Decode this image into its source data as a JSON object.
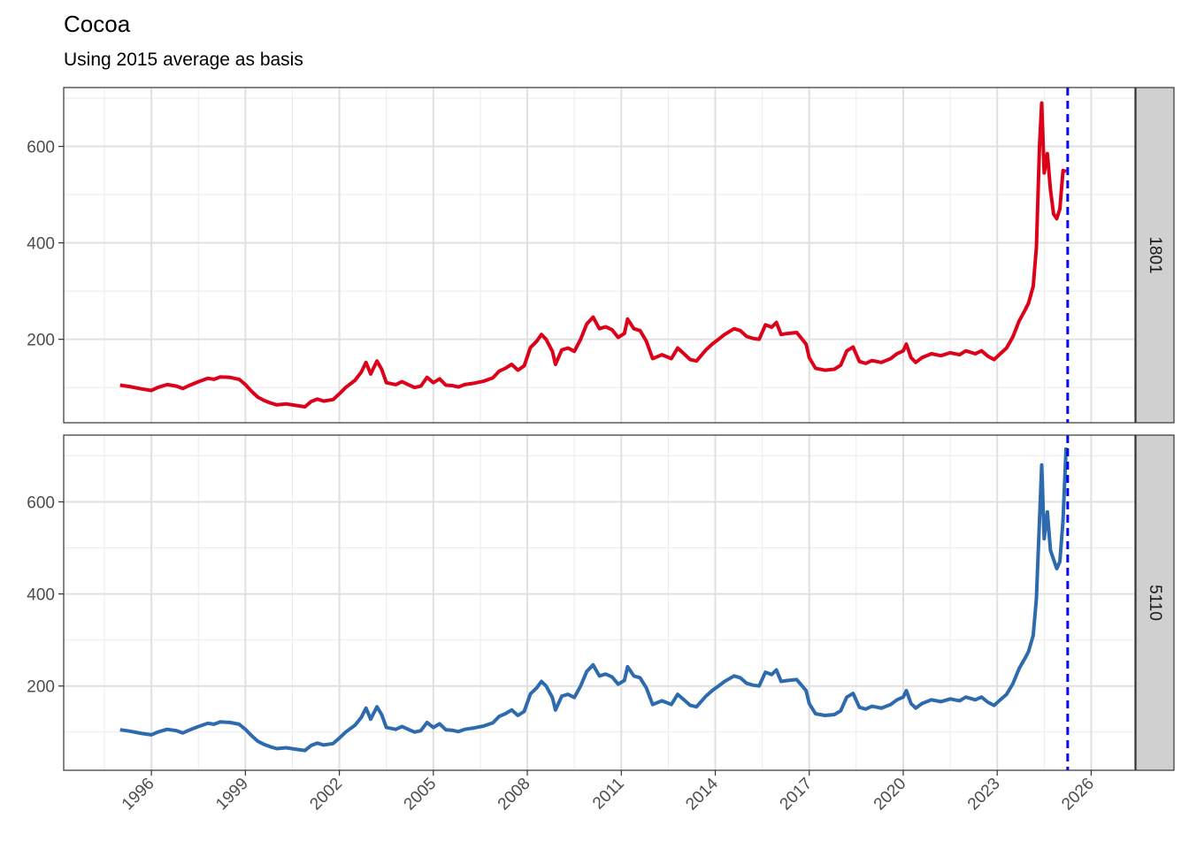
{
  "chart_data": {
    "type": "line",
    "title": "Cocoa",
    "subtitle": "Using 2015 average as basis",
    "xlabel": "",
    "ylabel": "",
    "x_ticks": [
      "1996",
      "1999",
      "2002",
      "2005",
      "2008",
      "2011",
      "2014",
      "2017",
      "2020",
      "2023",
      "2026"
    ],
    "y_ticks": [
      200,
      400,
      600
    ],
    "xlim": [
      1993.2,
      2027.4
    ],
    "vline": {
      "x": 2025.25,
      "color": "#0000ff",
      "style": "dashed"
    },
    "grid": true,
    "facets": [
      {
        "strip": "1801",
        "color": "#dd0019",
        "ylim": [
          27,
          722
        ],
        "points": [
          [
            1995.0,
            105
          ],
          [
            1995.3,
            102
          ],
          [
            1995.7,
            97
          ],
          [
            1996.0,
            94
          ],
          [
            1996.2,
            100
          ],
          [
            1996.5,
            106
          ],
          [
            1996.8,
            103
          ],
          [
            1997.0,
            98
          ],
          [
            1997.2,
            104
          ],
          [
            1997.5,
            112
          ],
          [
            1997.8,
            119
          ],
          [
            1998.0,
            117
          ],
          [
            1998.2,
            122
          ],
          [
            1998.5,
            121
          ],
          [
            1998.8,
            117
          ],
          [
            1999.0,
            106
          ],
          [
            1999.2,
            92
          ],
          [
            1999.4,
            80
          ],
          [
            1999.6,
            73
          ],
          [
            1999.8,
            68
          ],
          [
            2000.0,
            64
          ],
          [
            2000.3,
            66
          ],
          [
            2000.6,
            63
          ],
          [
            2000.9,
            60
          ],
          [
            2001.1,
            71
          ],
          [
            2001.3,
            76
          ],
          [
            2001.5,
            72
          ],
          [
            2001.8,
            75
          ],
          [
            2002.0,
            87
          ],
          [
            2002.2,
            100
          ],
          [
            2002.5,
            115
          ],
          [
            2002.7,
            132
          ],
          [
            2002.85,
            152
          ],
          [
            2003.0,
            128
          ],
          [
            2003.2,
            155
          ],
          [
            2003.35,
            138
          ],
          [
            2003.5,
            110
          ],
          [
            2003.8,
            106
          ],
          [
            2004.0,
            112
          ],
          [
            2004.2,
            106
          ],
          [
            2004.4,
            100
          ],
          [
            2004.6,
            103
          ],
          [
            2004.8,
            121
          ],
          [
            2005.0,
            110
          ],
          [
            2005.2,
            118
          ],
          [
            2005.4,
            105
          ],
          [
            2005.6,
            104
          ],
          [
            2005.8,
            101
          ],
          [
            2006.0,
            106
          ],
          [
            2006.3,
            109
          ],
          [
            2006.6,
            113
          ],
          [
            2006.9,
            120
          ],
          [
            2007.1,
            134
          ],
          [
            2007.3,
            140
          ],
          [
            2007.5,
            148
          ],
          [
            2007.7,
            136
          ],
          [
            2007.9,
            145
          ],
          [
            2008.1,
            183
          ],
          [
            2008.3,
            196
          ],
          [
            2008.45,
            210
          ],
          [
            2008.6,
            200
          ],
          [
            2008.8,
            175
          ],
          [
            2008.9,
            148
          ],
          [
            2009.1,
            178
          ],
          [
            2009.3,
            182
          ],
          [
            2009.5,
            175
          ],
          [
            2009.7,
            200
          ],
          [
            2009.9,
            232
          ],
          [
            2010.1,
            246
          ],
          [
            2010.3,
            222
          ],
          [
            2010.5,
            226
          ],
          [
            2010.7,
            220
          ],
          [
            2010.9,
            204
          ],
          [
            2011.1,
            212
          ],
          [
            2011.2,
            242
          ],
          [
            2011.4,
            222
          ],
          [
            2011.6,
            218
          ],
          [
            2011.8,
            196
          ],
          [
            2012.0,
            160
          ],
          [
            2012.3,
            168
          ],
          [
            2012.6,
            160
          ],
          [
            2012.8,
            182
          ],
          [
            2013.0,
            170
          ],
          [
            2013.2,
            158
          ],
          [
            2013.4,
            155
          ],
          [
            2013.7,
            178
          ],
          [
            2013.9,
            190
          ],
          [
            2014.1,
            200
          ],
          [
            2014.3,
            210
          ],
          [
            2014.6,
            222
          ],
          [
            2014.8,
            218
          ],
          [
            2015.0,
            206
          ],
          [
            2015.2,
            202
          ],
          [
            2015.4,
            200
          ],
          [
            2015.6,
            230
          ],
          [
            2015.8,
            225
          ],
          [
            2015.95,
            235
          ],
          [
            2016.1,
            210
          ],
          [
            2016.3,
            212
          ],
          [
            2016.6,
            214
          ],
          [
            2016.9,
            190
          ],
          [
            2017.0,
            162
          ],
          [
            2017.2,
            140
          ],
          [
            2017.5,
            136
          ],
          [
            2017.8,
            138
          ],
          [
            2018.0,
            146
          ],
          [
            2018.2,
            176
          ],
          [
            2018.4,
            184
          ],
          [
            2018.6,
            154
          ],
          [
            2018.8,
            150
          ],
          [
            2019.0,
            156
          ],
          [
            2019.3,
            152
          ],
          [
            2019.6,
            160
          ],
          [
            2019.8,
            170
          ],
          [
            2020.0,
            176
          ],
          [
            2020.1,
            190
          ],
          [
            2020.25,
            162
          ],
          [
            2020.4,
            152
          ],
          [
            2020.6,
            162
          ],
          [
            2020.9,
            170
          ],
          [
            2021.2,
            166
          ],
          [
            2021.5,
            172
          ],
          [
            2021.8,
            168
          ],
          [
            2022.0,
            176
          ],
          [
            2022.3,
            170
          ],
          [
            2022.5,
            176
          ],
          [
            2022.7,
            165
          ],
          [
            2022.9,
            158
          ],
          [
            2023.1,
            170
          ],
          [
            2023.3,
            182
          ],
          [
            2023.5,
            205
          ],
          [
            2023.7,
            238
          ],
          [
            2023.9,
            262
          ],
          [
            2024.0,
            275
          ],
          [
            2024.15,
            310
          ],
          [
            2024.25,
            390
          ],
          [
            2024.35,
            600
          ],
          [
            2024.42,
            690
          ],
          [
            2024.5,
            545
          ],
          [
            2024.6,
            585
          ],
          [
            2024.7,
            510
          ],
          [
            2024.8,
            460
          ],
          [
            2024.9,
            450
          ],
          [
            2025.0,
            470
          ],
          [
            2025.1,
            550
          ],
          [
            2025.2,
            548
          ]
        ]
      },
      {
        "strip": "5110",
        "color": "#2d6aae",
        "ylim": [
          17,
          745
        ],
        "points": [
          [
            1995.0,
            105
          ],
          [
            1995.3,
            102
          ],
          [
            1995.7,
            97
          ],
          [
            1996.0,
            94
          ],
          [
            1996.2,
            100
          ],
          [
            1996.5,
            106
          ],
          [
            1996.8,
            103
          ],
          [
            1997.0,
            98
          ],
          [
            1997.2,
            104
          ],
          [
            1997.5,
            112
          ],
          [
            1997.8,
            119
          ],
          [
            1998.0,
            117
          ],
          [
            1998.2,
            122
          ],
          [
            1998.5,
            121
          ],
          [
            1998.8,
            117
          ],
          [
            1999.0,
            106
          ],
          [
            1999.2,
            92
          ],
          [
            1999.4,
            80
          ],
          [
            1999.6,
            73
          ],
          [
            1999.8,
            68
          ],
          [
            2000.0,
            64
          ],
          [
            2000.3,
            66
          ],
          [
            2000.6,
            63
          ],
          [
            2000.9,
            60
          ],
          [
            2001.1,
            71
          ],
          [
            2001.3,
            76
          ],
          [
            2001.5,
            72
          ],
          [
            2001.8,
            75
          ],
          [
            2002.0,
            87
          ],
          [
            2002.2,
            100
          ],
          [
            2002.5,
            115
          ],
          [
            2002.7,
            132
          ],
          [
            2002.85,
            152
          ],
          [
            2003.0,
            128
          ],
          [
            2003.2,
            155
          ],
          [
            2003.35,
            138
          ],
          [
            2003.5,
            110
          ],
          [
            2003.8,
            106
          ],
          [
            2004.0,
            112
          ],
          [
            2004.2,
            106
          ],
          [
            2004.4,
            100
          ],
          [
            2004.6,
            103
          ],
          [
            2004.8,
            121
          ],
          [
            2005.0,
            110
          ],
          [
            2005.2,
            118
          ],
          [
            2005.4,
            105
          ],
          [
            2005.6,
            104
          ],
          [
            2005.8,
            101
          ],
          [
            2006.0,
            106
          ],
          [
            2006.3,
            109
          ],
          [
            2006.6,
            113
          ],
          [
            2006.9,
            120
          ],
          [
            2007.1,
            134
          ],
          [
            2007.3,
            140
          ],
          [
            2007.5,
            148
          ],
          [
            2007.7,
            136
          ],
          [
            2007.9,
            145
          ],
          [
            2008.1,
            183
          ],
          [
            2008.3,
            196
          ],
          [
            2008.45,
            210
          ],
          [
            2008.6,
            200
          ],
          [
            2008.8,
            175
          ],
          [
            2008.9,
            148
          ],
          [
            2009.1,
            178
          ],
          [
            2009.3,
            182
          ],
          [
            2009.5,
            175
          ],
          [
            2009.7,
            200
          ],
          [
            2009.9,
            232
          ],
          [
            2010.1,
            246
          ],
          [
            2010.3,
            222
          ],
          [
            2010.5,
            226
          ],
          [
            2010.7,
            220
          ],
          [
            2010.9,
            204
          ],
          [
            2011.1,
            212
          ],
          [
            2011.2,
            242
          ],
          [
            2011.4,
            222
          ],
          [
            2011.6,
            218
          ],
          [
            2011.8,
            196
          ],
          [
            2012.0,
            160
          ],
          [
            2012.3,
            168
          ],
          [
            2012.6,
            160
          ],
          [
            2012.8,
            182
          ],
          [
            2013.0,
            170
          ],
          [
            2013.2,
            158
          ],
          [
            2013.4,
            155
          ],
          [
            2013.7,
            178
          ],
          [
            2013.9,
            190
          ],
          [
            2014.1,
            200
          ],
          [
            2014.3,
            210
          ],
          [
            2014.6,
            222
          ],
          [
            2014.8,
            218
          ],
          [
            2015.0,
            206
          ],
          [
            2015.2,
            202
          ],
          [
            2015.4,
            200
          ],
          [
            2015.6,
            230
          ],
          [
            2015.8,
            225
          ],
          [
            2015.95,
            235
          ],
          [
            2016.1,
            210
          ],
          [
            2016.3,
            212
          ],
          [
            2016.6,
            214
          ],
          [
            2016.9,
            190
          ],
          [
            2017.0,
            162
          ],
          [
            2017.2,
            140
          ],
          [
            2017.5,
            136
          ],
          [
            2017.8,
            138
          ],
          [
            2018.0,
            146
          ],
          [
            2018.2,
            176
          ],
          [
            2018.4,
            184
          ],
          [
            2018.6,
            154
          ],
          [
            2018.8,
            150
          ],
          [
            2019.0,
            156
          ],
          [
            2019.3,
            152
          ],
          [
            2019.6,
            160
          ],
          [
            2019.8,
            170
          ],
          [
            2020.0,
            176
          ],
          [
            2020.1,
            190
          ],
          [
            2020.25,
            162
          ],
          [
            2020.4,
            152
          ],
          [
            2020.6,
            162
          ],
          [
            2020.9,
            170
          ],
          [
            2021.2,
            166
          ],
          [
            2021.5,
            172
          ],
          [
            2021.8,
            168
          ],
          [
            2022.0,
            176
          ],
          [
            2022.3,
            170
          ],
          [
            2022.5,
            176
          ],
          [
            2022.7,
            165
          ],
          [
            2022.9,
            158
          ],
          [
            2023.1,
            170
          ],
          [
            2023.3,
            182
          ],
          [
            2023.5,
            205
          ],
          [
            2023.7,
            238
          ],
          [
            2023.9,
            262
          ],
          [
            2024.0,
            275
          ],
          [
            2024.15,
            310
          ],
          [
            2024.25,
            390
          ],
          [
            2024.35,
            560
          ],
          [
            2024.42,
            680
          ],
          [
            2024.5,
            520
          ],
          [
            2024.6,
            578
          ],
          [
            2024.7,
            495
          ],
          [
            2024.8,
            475
          ],
          [
            2024.9,
            455
          ],
          [
            2025.0,
            470
          ],
          [
            2025.1,
            560
          ],
          [
            2025.2,
            718
          ]
        ]
      }
    ]
  }
}
